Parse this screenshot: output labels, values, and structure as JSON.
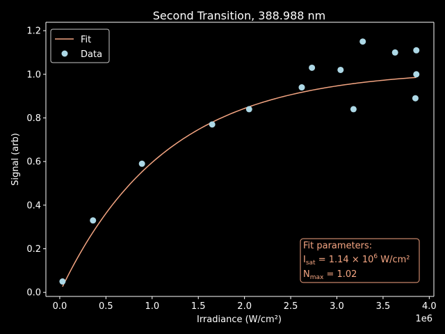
{
  "chart_data": {
    "type": "scatter",
    "title": "Second Transition, 388.988 nm",
    "xlabel": "Irradiance (W/cm²)",
    "ylabel": "Signal (arb)",
    "x_offset_text": "1e6",
    "xlim": [
      -0.15,
      4.05
    ],
    "ylim": [
      -0.0185,
      1.2385
    ],
    "x_ticks": [
      0.0,
      0.5,
      1.0,
      1.5,
      2.0,
      2.5,
      3.0,
      3.5,
      4.0
    ],
    "x_tick_labels": [
      "0.0",
      "0.5",
      "1.0",
      "1.5",
      "2.0",
      "2.5",
      "3.0",
      "3.5",
      "4.0"
    ],
    "y_ticks": [
      0.0,
      0.2,
      0.4,
      0.6,
      0.8,
      1.0,
      1.2
    ],
    "y_tick_labels": [
      "0.0",
      "0.2",
      "0.4",
      "0.6",
      "0.8",
      "1.0",
      "1.2"
    ],
    "grid": false,
    "legend": {
      "placement": "top-left",
      "entries": [
        "Fit",
        "Data"
      ]
    },
    "series": [
      {
        "name": "Data",
        "kind": "scatter",
        "color": "#add8e6",
        "x": [
          0.03,
          0.36,
          0.89,
          1.65,
          2.05,
          2.62,
          2.73,
          3.04,
          3.18,
          3.28,
          3.63,
          3.85,
          3.86,
          3.86
        ],
        "y": [
          0.05,
          0.33,
          0.59,
          0.77,
          0.84,
          0.94,
          1.03,
          1.02,
          0.84,
          1.15,
          1.1,
          0.89,
          1.11,
          1.0
        ]
      },
      {
        "name": "Fit",
        "kind": "line",
        "color": "#f4a582",
        "model": "saturation",
        "I_sat": 1.14,
        "N_max": 1.02,
        "x_range": [
          0.03,
          3.86
        ]
      }
    ],
    "annotation": {
      "placement": "bottom-right",
      "title": "Fit parameters:",
      "isat_symbol": "I",
      "isat_subscript": "sat",
      "isat_value": " = 1.14 × 10",
      "isat_exponent": "6",
      "isat_unit": " W/cm²",
      "nmax_symbol": "N",
      "nmax_subscript": "max",
      "nmax_value": " = 1.02",
      "color": "#f4a582"
    }
  }
}
